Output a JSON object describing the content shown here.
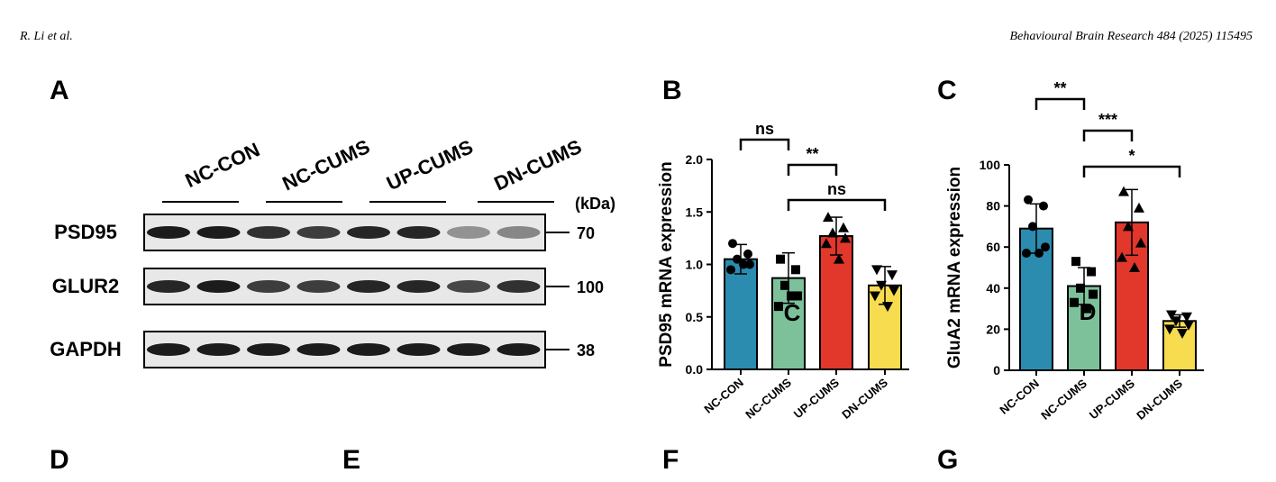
{
  "header": {
    "authors": "R. Li et al.",
    "journal": "Behavioural Brain Research 484 (2025) 115495"
  },
  "panels": [
    "A",
    "B",
    "C",
    "D",
    "E",
    "F",
    "G"
  ],
  "blot": {
    "groups": [
      "NC-CON",
      "NC-CUMS",
      "UP-CUMS",
      "DN-CUMS"
    ],
    "unit": "(kDa)",
    "rows": [
      {
        "protein": "PSD95",
        "kda": "70"
      },
      {
        "protein": "GLUR2",
        "kda": "100"
      },
      {
        "protein": "GAPDH",
        "kda": "38"
      }
    ]
  },
  "chart_data": [
    {
      "type": "bar",
      "ylabel": "PSD95 mRNA expression",
      "categories": [
        "NC-CON",
        "NC-CUMS",
        "UP-CUMS",
        "DN-CUMS"
      ],
      "values": [
        1.05,
        0.87,
        1.27,
        0.8
      ],
      "errors": [
        0.14,
        0.24,
        0.18,
        0.18
      ],
      "points": [
        [
          1.2,
          1.1,
          1.05,
          1.0,
          0.95,
          1.0
        ],
        [
          1.05,
          0.95,
          0.8,
          0.7,
          0.6,
          0.7
        ],
        [
          1.45,
          1.35,
          1.3,
          1.25,
          1.2,
          1.05
        ],
        [
          0.95,
          0.9,
          0.8,
          0.75,
          0.7,
          0.6
        ]
      ],
      "colors": [
        "#2b8cb0",
        "#7cc19a",
        "#e2372b",
        "#f7dc50"
      ],
      "ylim": [
        0,
        2.0
      ],
      "yticks": [
        {
          "value": 0,
          "label": "0.0"
        },
        {
          "value": 0.5,
          "label": "0.5"
        },
        {
          "value": 1,
          "label": "1.0"
        },
        {
          "value": 1.5,
          "label": "1.5"
        },
        {
          "value": 2,
          "label": "2.0"
        }
      ],
      "annotations": [
        "ns",
        "**",
        "ns"
      ],
      "overlay_text": "C"
    },
    {
      "type": "bar",
      "ylabel": "GluA2 mRNA expression",
      "categories": [
        "NC-CON",
        "NC-CUMS",
        "UP-CUMS",
        "DN-CUMS"
      ],
      "values": [
        69,
        41,
        72,
        24
      ],
      "errors": [
        12,
        9,
        16,
        3
      ],
      "points": [
        [
          83,
          80,
          70,
          60,
          57,
          57
        ],
        [
          53,
          48,
          40,
          37,
          33,
          30
        ],
        [
          87,
          79,
          70,
          62,
          55,
          50
        ],
        [
          27,
          26,
          24,
          22,
          20,
          18
        ]
      ],
      "colors": [
        "#2b8cb0",
        "#7cc19a",
        "#e2372b",
        "#f7dc50"
      ],
      "ylim": [
        0,
        100
      ],
      "yticks": [
        0,
        20,
        40,
        60,
        80,
        100
      ],
      "annotations": [
        "**",
        "***",
        "*"
      ],
      "overlay_text": "D"
    }
  ]
}
